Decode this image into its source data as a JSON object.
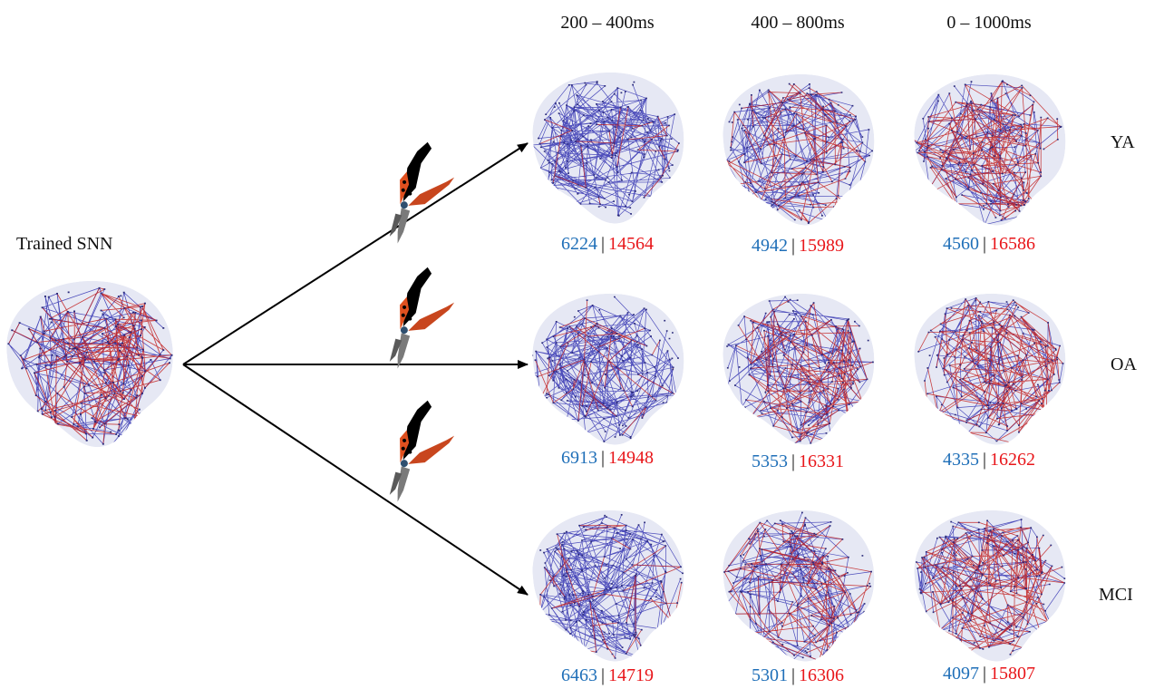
{
  "source_label": "Trained SNN",
  "columns": [
    "200 – 400ms",
    "400 – 800ms",
    "0 – 1000ms"
  ],
  "rows": [
    "YA",
    "OA",
    "MCI"
  ],
  "counts": [
    [
      {
        "blue": "6224",
        "red": "14564"
      },
      {
        "blue": "4942",
        "red": "15989"
      },
      {
        "blue": "4560",
        "red": "16586"
      }
    ],
    [
      {
        "blue": "6913",
        "red": "14948"
      },
      {
        "blue": "5353",
        "red": "16331"
      },
      {
        "blue": "4335",
        "red": "16262"
      }
    ],
    [
      {
        "blue": "6463",
        "red": "14719"
      },
      {
        "blue": "5301",
        "red": "16306"
      },
      {
        "blue": "4097",
        "red": "15807"
      }
    ]
  ],
  "separator": "|",
  "colors": {
    "blue": "#1f6fb8",
    "red": "#e8161a",
    "network_blue": "#1a1aa8",
    "network_red": "#c01818"
  },
  "stimulus_icon": "pruning-shears-icon"
}
